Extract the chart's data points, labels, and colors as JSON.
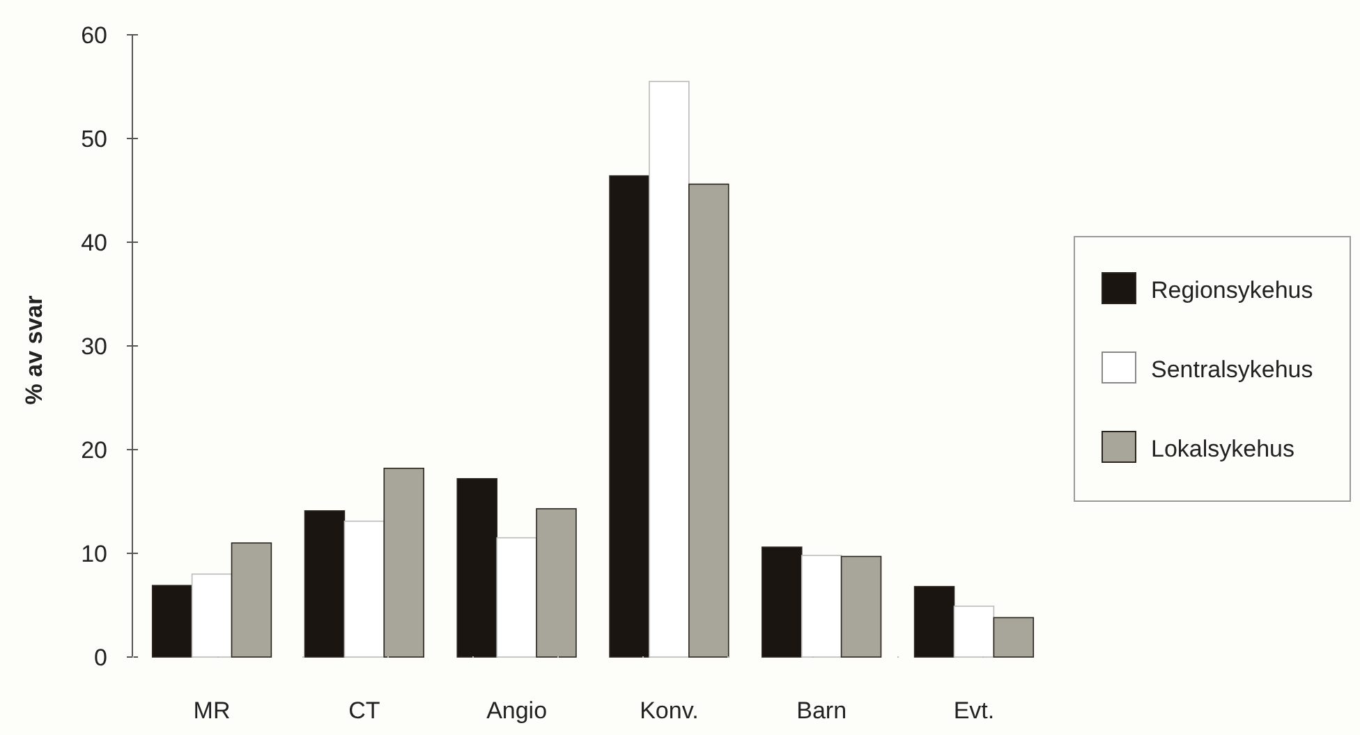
{
  "chart_data": {
    "type": "bar",
    "ylabel": "% av svar",
    "categories": [
      "MR",
      "CT",
      "Angio",
      "Konv.",
      "Barn",
      "Evt."
    ],
    "series": [
      {
        "name": "Regionsykehus",
        "color": "#1a1510",
        "values": [
          6.9,
          14.1,
          17.2,
          46.4,
          10.6,
          6.8
        ]
      },
      {
        "name": "Sentralsykehus",
        "color": "#ffffff",
        "values": [
          8.0,
          13.1,
          11.5,
          55.5,
          9.8,
          4.9
        ]
      },
      {
        "name": "Lokalsykehus",
        "color": "#a8a69a",
        "values": [
          11.0,
          18.2,
          14.3,
          45.6,
          9.7,
          3.8
        ]
      }
    ],
    "ylim": [
      0,
      60
    ],
    "yticks": [
      0,
      10,
      20,
      30,
      40,
      50,
      60
    ],
    "grid": false,
    "legend": "right"
  }
}
